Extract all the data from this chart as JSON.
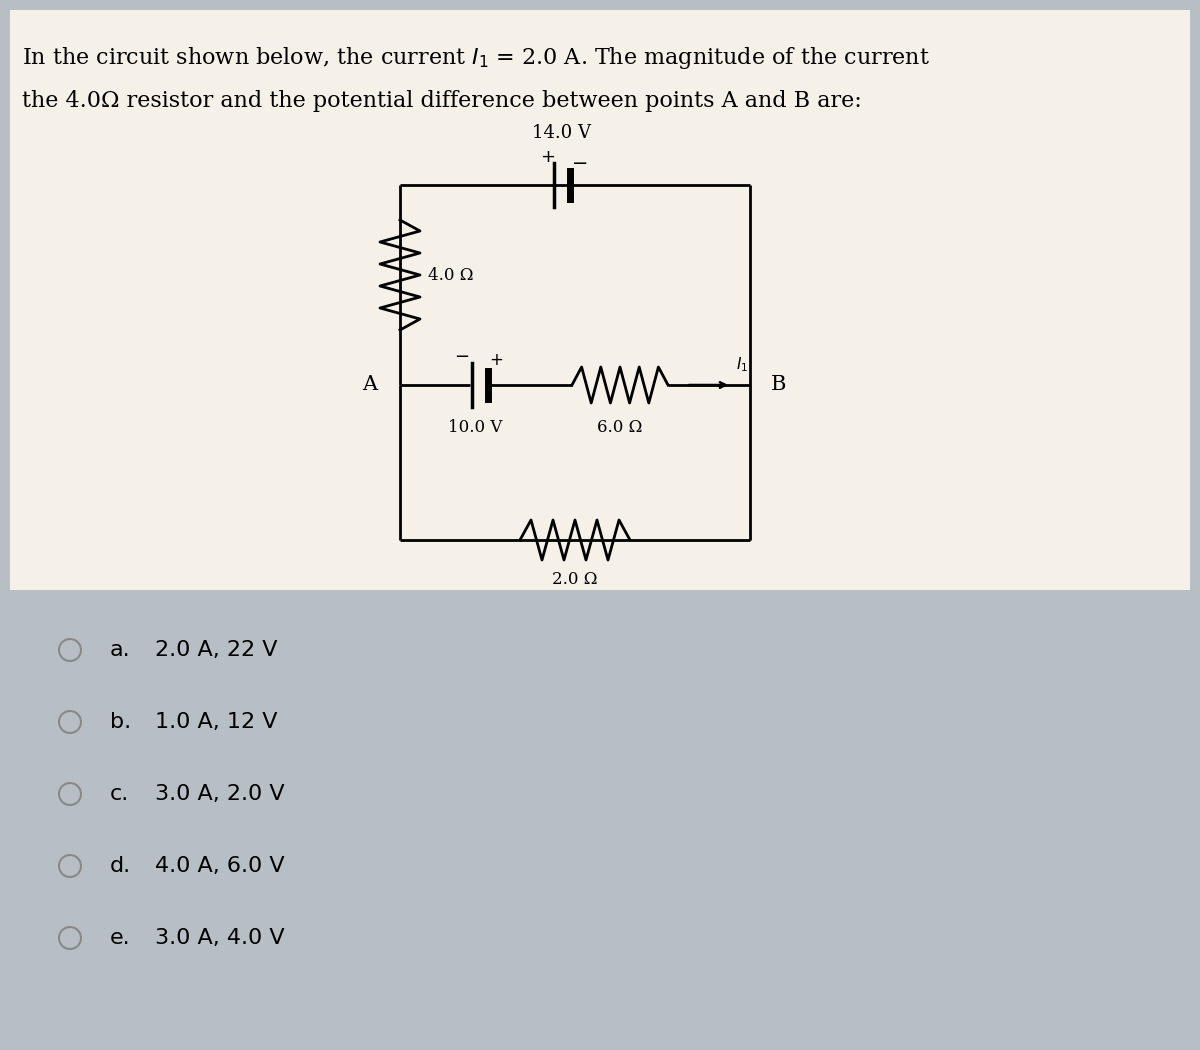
{
  "bg_color": "#b8bfc4",
  "panel_color": "#f5f0e8",
  "title_line1": "In the circuit shown below, the current $I_1$ = 2.0 A. The magnitude of the current",
  "title_line2": "the 4.0Ω resistor and the potential difference between points A and B are:",
  "options": [
    {
      "label": "a.",
      "text": "2.0 A, 22 V"
    },
    {
      "label": "b.",
      "text": "1.0 A, 12 V"
    },
    {
      "label": "c.",
      "text": "3.0 A, 2.0 V"
    },
    {
      "label": "d.",
      "text": "4.0 A, 6.0 V"
    },
    {
      "label": "e.",
      "text": "3.0 A, 4.0 V"
    }
  ]
}
